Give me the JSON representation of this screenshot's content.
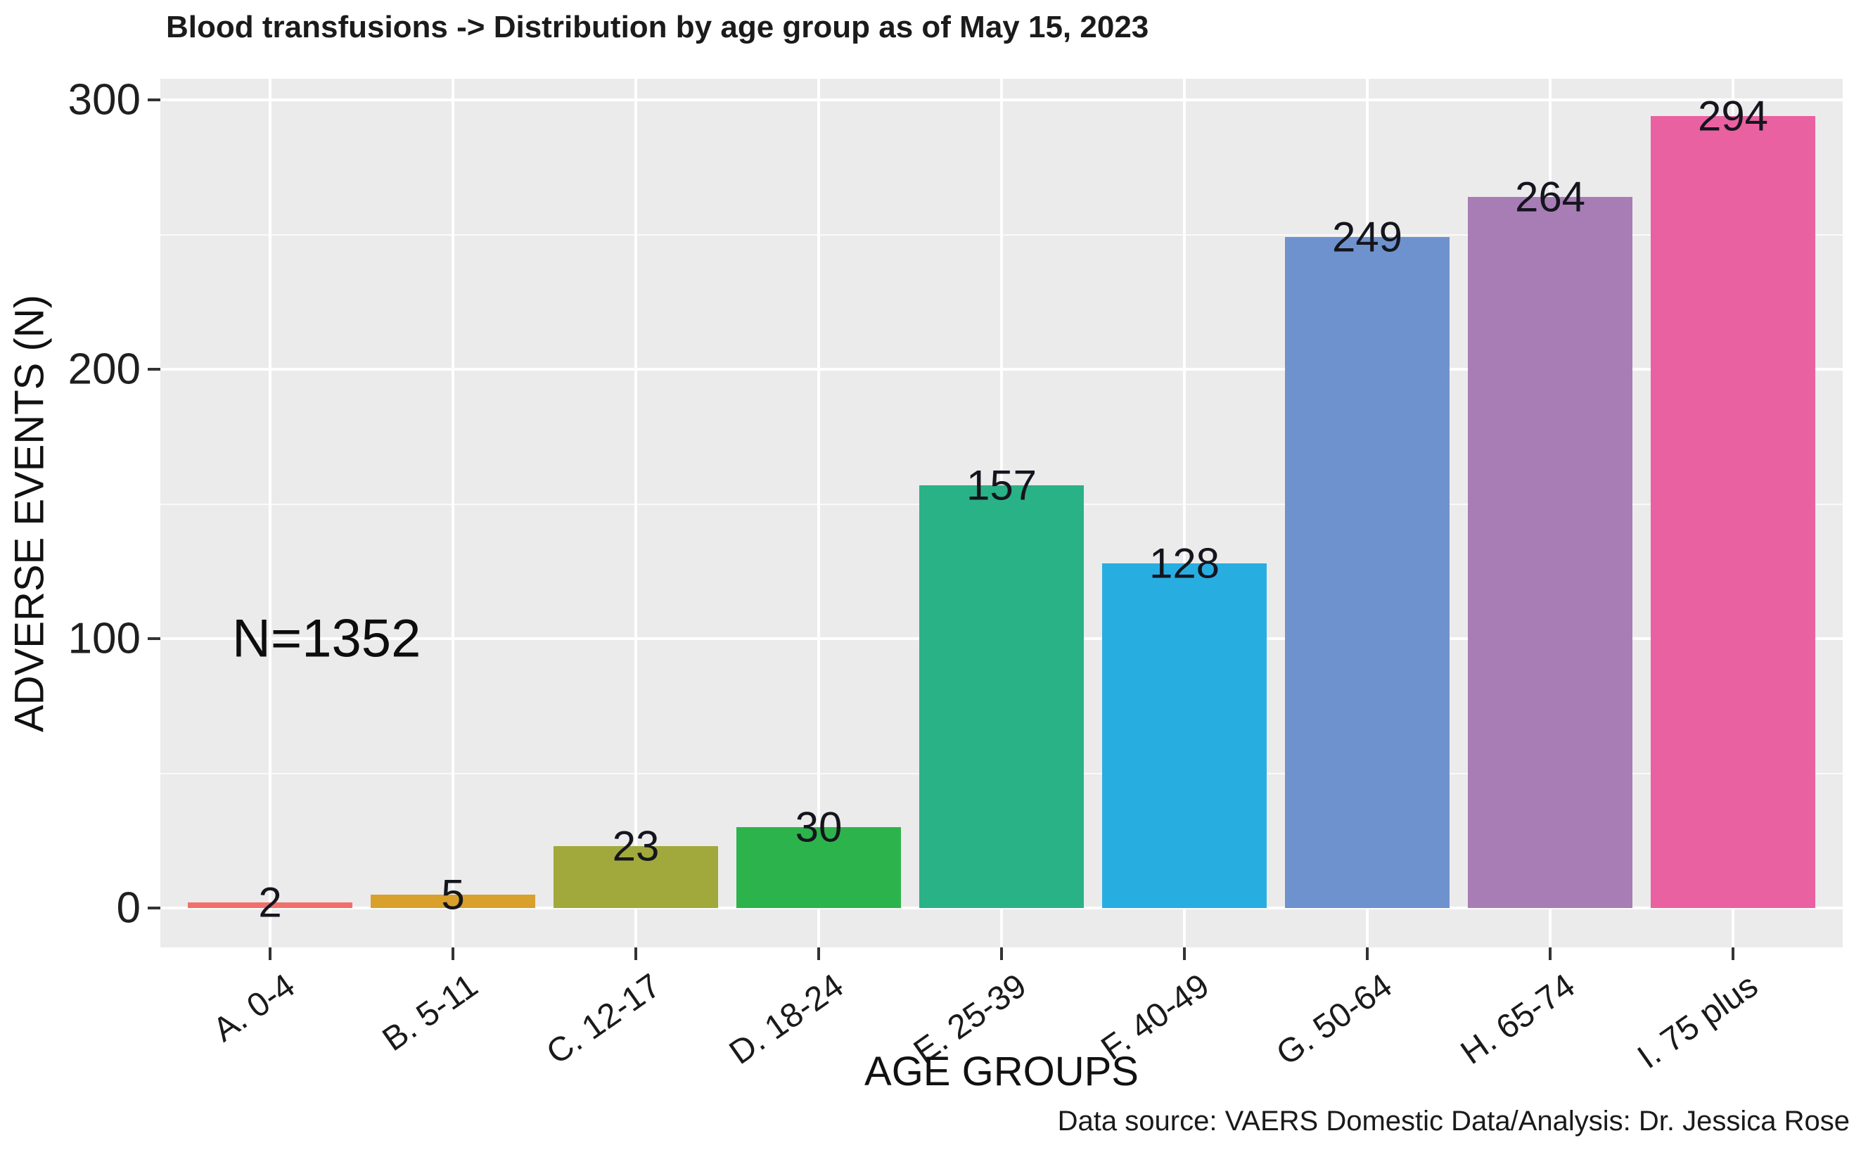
{
  "chart_data": {
    "type": "bar",
    "title": "Blood transfusions -> Distribution by age group as of May 15, 2023",
    "xlabel": "AGE GROUPS",
    "ylabel": "ADVERSE EVENTS (N)",
    "annotation": "N=1352",
    "total_n": 1352,
    "source_note": "Data source: VAERS Domestic Data/Analysis: Dr. Jessica Rose",
    "categories": [
      "A. 0-4",
      "B. 5-11",
      "C. 12-17",
      "D. 18-24",
      "E. 25-39",
      "F. 40-49",
      "G. 50-64",
      "H. 65-74",
      "I. 75 plus"
    ],
    "values": [
      2,
      5,
      23,
      30,
      157,
      128,
      249,
      264,
      294
    ],
    "bar_colors": [
      "#F0706C",
      "#D9A02C",
      "#A1A93C",
      "#2DB34B",
      "#2AB287",
      "#28ADE1",
      "#6E92CE",
      "#A87DB5",
      "#EA61A1"
    ],
    "yticks_major": [
      0,
      100,
      200,
      300
    ],
    "yticks_minor": [
      50,
      150,
      250
    ],
    "ylim": [
      -14.7,
      308.7
    ],
    "x_tick_angle_deg": 35,
    "legend": "none",
    "grid": "white major+minor horizontal, white vertical at category centers",
    "panel_bg": "#EBEBEB",
    "grid_color": "#FFFFFF",
    "text_color": "#1A1A1A"
  }
}
